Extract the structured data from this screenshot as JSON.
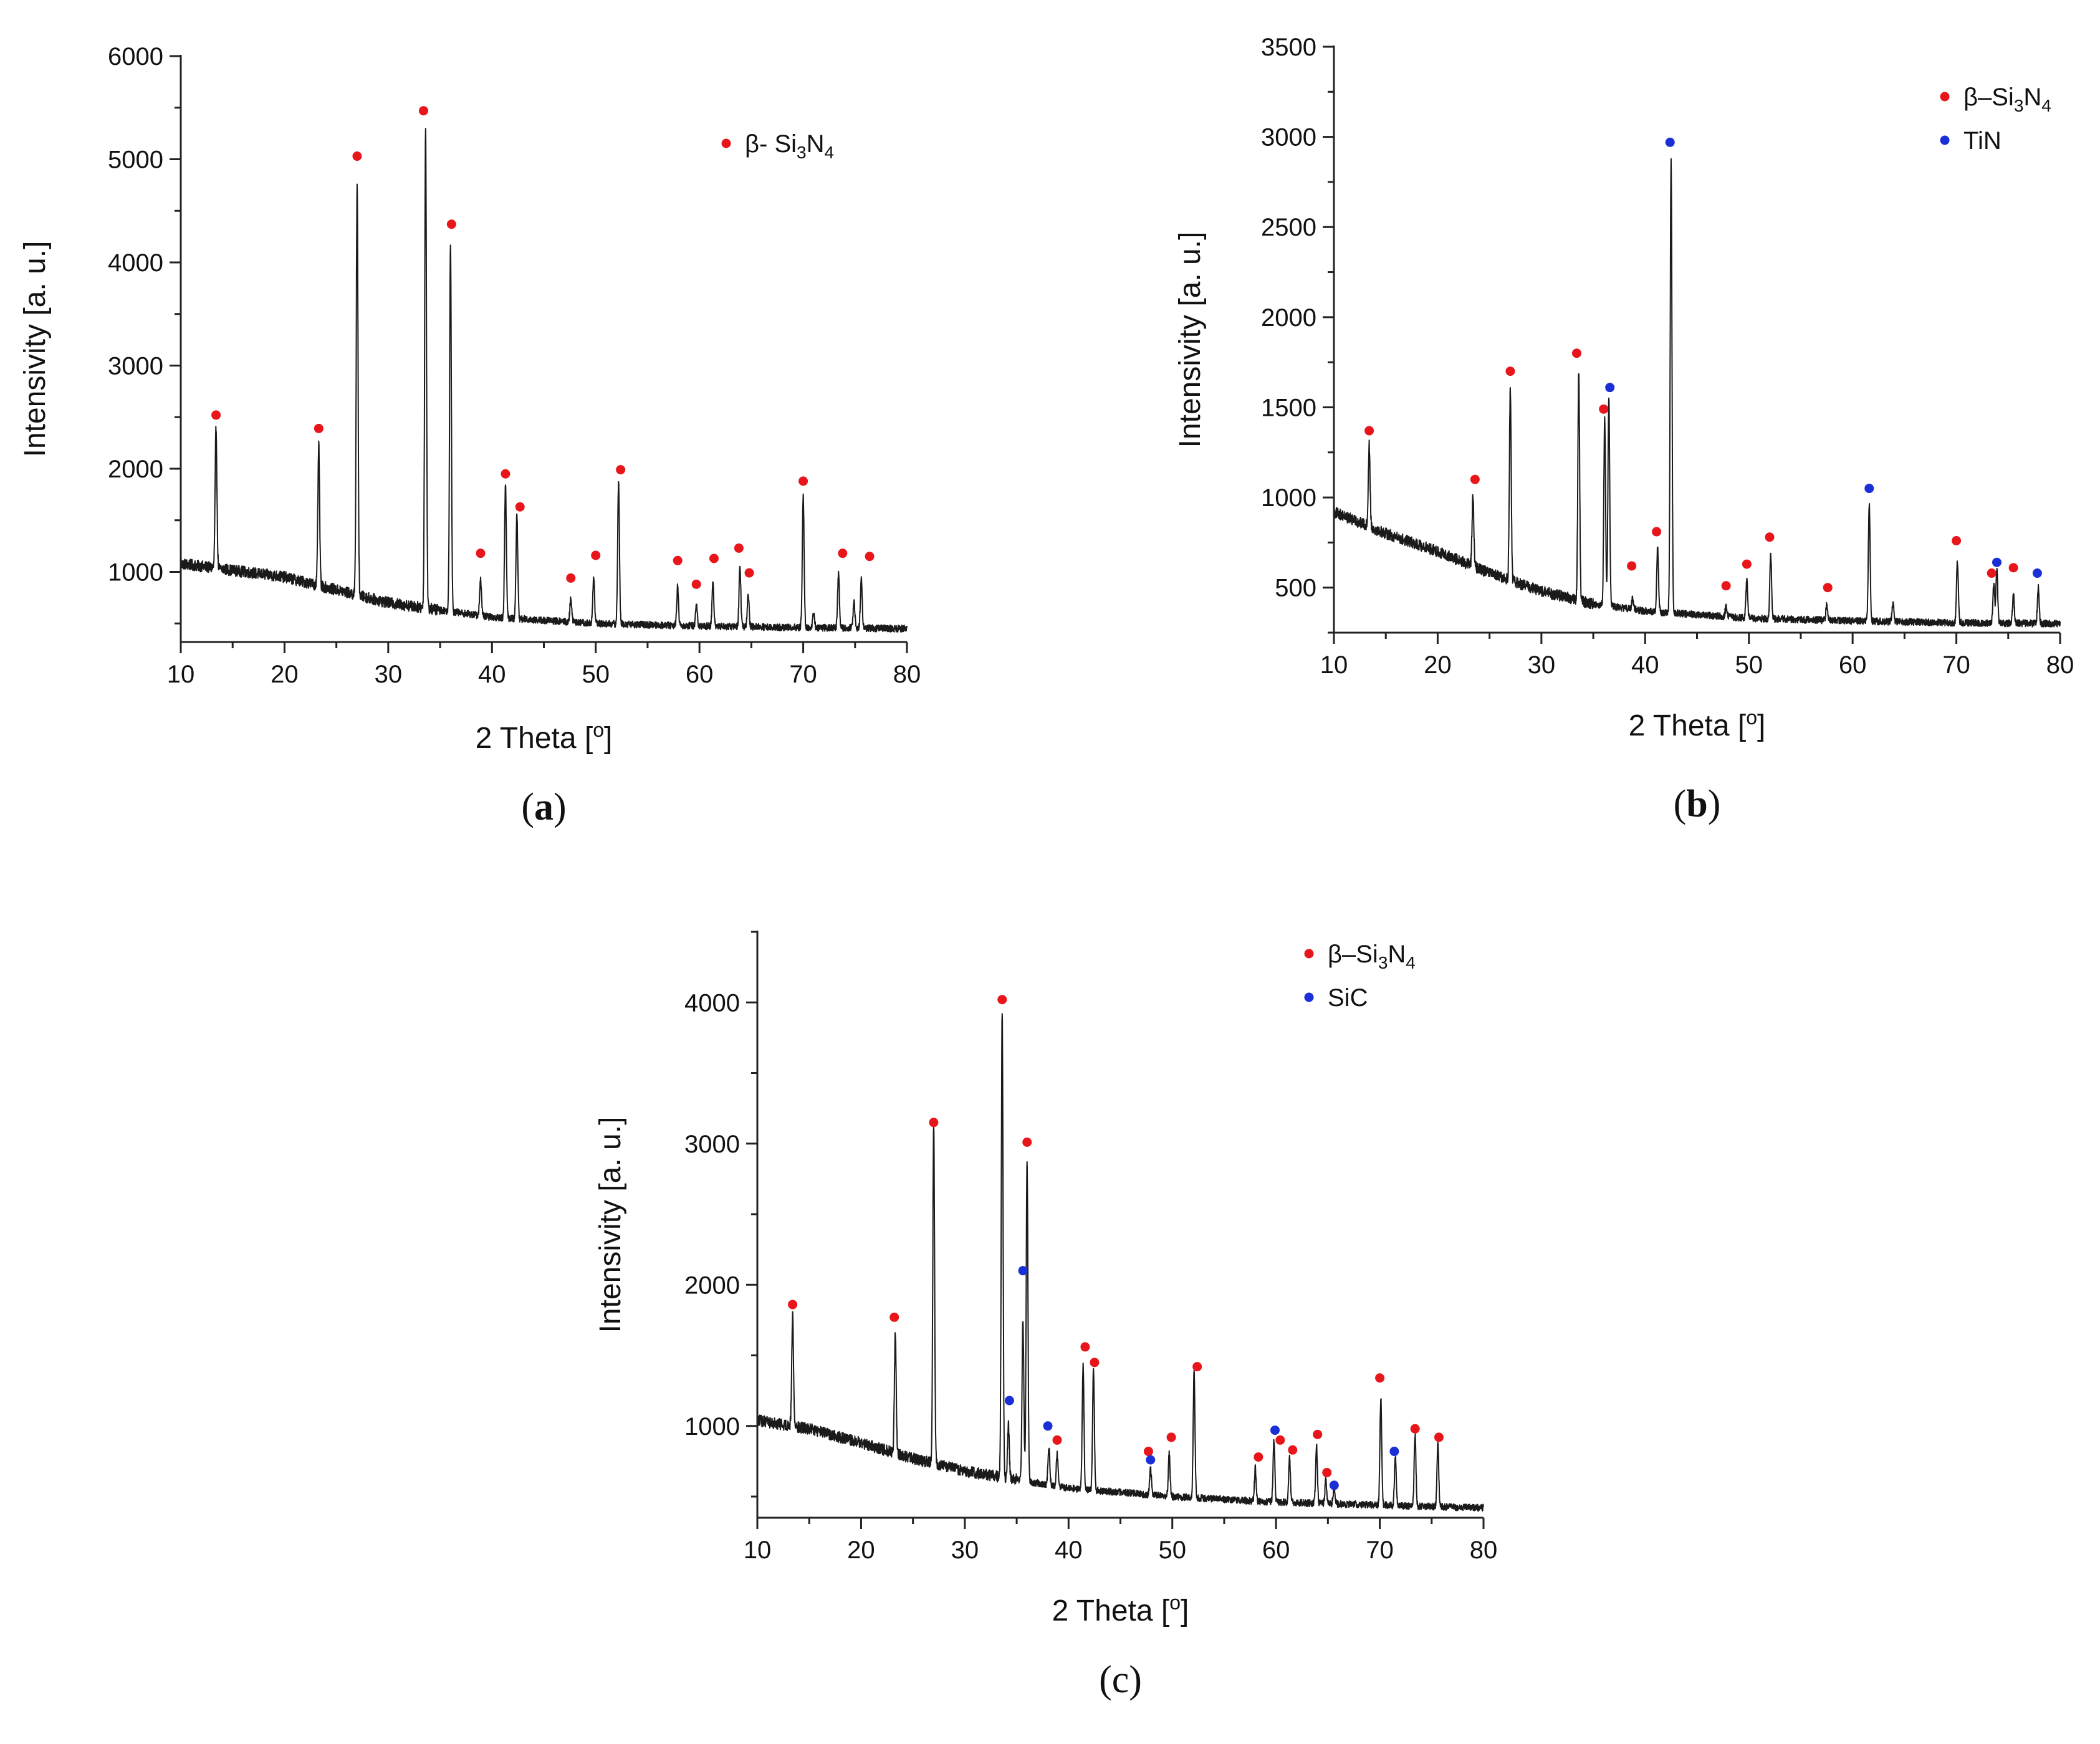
{
  "chart_data": [
    {
      "type": "line",
      "panel_label": "a",
      "label_style": "bold",
      "xlabel": "2 Theta [o]",
      "xlabel_main": "2 Theta [",
      "xlabel_sup": "o",
      "xlabel_end": "]",
      "ylabel": "Intensivity [a. u.]",
      "xlim": [
        10,
        80
      ],
      "ylim": [
        320,
        6000
      ],
      "xticks": [
        10,
        20,
        30,
        40,
        50,
        60,
        70,
        80
      ],
      "yticks": [
        1000,
        2000,
        3000,
        4000,
        5000,
        6000
      ],
      "legend": [
        {
          "label": "β- Si3N4",
          "prefix": "β- Si",
          "sub1": "3",
          "mid": "N",
          "sub2": "4",
          "color": "#e8161b"
        }
      ],
      "baseline": [
        [
          10,
          1080
        ],
        [
          20,
          950
        ],
        [
          30,
          700
        ],
        [
          40,
          560
        ],
        [
          50,
          500
        ],
        [
          60,
          475
        ],
        [
          70,
          460
        ],
        [
          80,
          450
        ]
      ],
      "peaks": [
        [
          13.4,
          2400
        ],
        [
          23.3,
          2220
        ],
        [
          27.0,
          4760
        ],
        [
          33.6,
          5300
        ],
        [
          36.0,
          4180
        ],
        [
          38.9,
          940
        ],
        [
          41.3,
          1850
        ],
        [
          42.4,
          1560
        ],
        [
          47.6,
          750
        ],
        [
          49.8,
          950
        ],
        [
          52.2,
          1860
        ],
        [
          57.9,
          860
        ],
        [
          59.7,
          700
        ],
        [
          61.3,
          900
        ],
        [
          63.9,
          1050
        ],
        [
          64.7,
          780
        ],
        [
          70.0,
          1730
        ],
        [
          71.0,
          600
        ],
        [
          73.4,
          980
        ],
        [
          74.9,
          700
        ],
        [
          75.6,
          940
        ]
      ],
      "markers": [
        {
          "x": 13.4,
          "y": 2520,
          "phase": "Si3N4"
        },
        {
          "x": 23.3,
          "y": 2390,
          "phase": "Si3N4"
        },
        {
          "x": 27.0,
          "y": 5030,
          "phase": "Si3N4"
        },
        {
          "x": 33.4,
          "y": 5470,
          "phase": "Si3N4"
        },
        {
          "x": 36.1,
          "y": 4370,
          "phase": "Si3N4"
        },
        {
          "x": 38.9,
          "y": 1180,
          "phase": "Si3N4"
        },
        {
          "x": 41.3,
          "y": 1950,
          "phase": "Si3N4"
        },
        {
          "x": 42.7,
          "y": 1630,
          "phase": "Si3N4"
        },
        {
          "x": 47.6,
          "y": 940,
          "phase": "Si3N4"
        },
        {
          "x": 50.0,
          "y": 1160,
          "phase": "Si3N4"
        },
        {
          "x": 52.4,
          "y": 1990,
          "phase": "Si3N4"
        },
        {
          "x": 57.9,
          "y": 1110,
          "phase": "Si3N4"
        },
        {
          "x": 59.7,
          "y": 880,
          "phase": "Si3N4"
        },
        {
          "x": 61.4,
          "y": 1130,
          "phase": "Si3N4"
        },
        {
          "x": 63.8,
          "y": 1230,
          "phase": "Si3N4"
        },
        {
          "x": 64.8,
          "y": 990,
          "phase": "Si3N4"
        },
        {
          "x": 70.0,
          "y": 1880,
          "phase": "Si3N4"
        },
        {
          "x": 73.8,
          "y": 1180,
          "phase": "Si3N4"
        },
        {
          "x": 76.4,
          "y": 1150,
          "phase": "Si3N4"
        }
      ]
    },
    {
      "type": "line",
      "panel_label": "b",
      "label_style": "bold",
      "xlabel": "2 Theta [o]",
      "xlabel_main": "2 Theta [",
      "xlabel_sup": "o",
      "xlabel_end": "]",
      "ylabel": "Intensivity [a. u.]",
      "xlim": [
        10,
        80
      ],
      "ylim": [
        250,
        3500
      ],
      "xticks": [
        10,
        20,
        30,
        40,
        50,
        60,
        70,
        80
      ],
      "yticks": [
        500,
        1000,
        1500,
        2000,
        2500,
        3000,
        3500
      ],
      "legend": [
        {
          "label": "β–Si3N4",
          "prefix": "β–Si",
          "sub1": "3",
          "mid": "N",
          "sub2": "4",
          "color": "#e8161b"
        },
        {
          "label": "TiN",
          "prefix": "TiN",
          "sub1": "",
          "mid": "",
          "sub2": "",
          "color": "#1a2fd6"
        }
      ],
      "baseline": [
        [
          10,
          920
        ],
        [
          15,
          800
        ],
        [
          20,
          700
        ],
        [
          25,
          580
        ],
        [
          30,
          480
        ],
        [
          35,
          410
        ],
        [
          40,
          370
        ],
        [
          50,
          330
        ],
        [
          60,
          315
        ],
        [
          70,
          305
        ],
        [
          80,
          300
        ]
      ],
      "peaks": [
        [
          13.4,
          1290
        ],
        [
          23.4,
          1000
        ],
        [
          27.0,
          1610
        ],
        [
          33.6,
          1690
        ],
        [
          36.1,
          1430
        ],
        [
          36.5,
          1560
        ],
        [
          38.8,
          440
        ],
        [
          41.2,
          720
        ],
        [
          42.5,
          2880
        ],
        [
          47.8,
          390
        ],
        [
          49.8,
          540
        ],
        [
          52.1,
          690
        ],
        [
          57.5,
          400
        ],
        [
          61.6,
          970
        ],
        [
          63.9,
          420
        ],
        [
          70.1,
          650
        ],
        [
          73.6,
          520
        ],
        [
          73.9,
          600
        ],
        [
          75.5,
          460
        ],
        [
          77.9,
          500
        ]
      ],
      "markers": [
        {
          "x": 13.4,
          "y": 1370,
          "phase": "Si3N4"
        },
        {
          "x": 23.6,
          "y": 1100,
          "phase": "Si3N4"
        },
        {
          "x": 27.0,
          "y": 1700,
          "phase": "Si3N4"
        },
        {
          "x": 33.4,
          "y": 1800,
          "phase": "Si3N4"
        },
        {
          "x": 36.0,
          "y": 1490,
          "phase": "Si3N4"
        },
        {
          "x": 36.6,
          "y": 1610,
          "phase": "TiN"
        },
        {
          "x": 38.7,
          "y": 620,
          "phase": "Si3N4"
        },
        {
          "x": 41.1,
          "y": 810,
          "phase": "Si3N4"
        },
        {
          "x": 42.4,
          "y": 2970,
          "phase": "TiN"
        },
        {
          "x": 47.8,
          "y": 510,
          "phase": "Si3N4"
        },
        {
          "x": 49.8,
          "y": 630,
          "phase": "Si3N4"
        },
        {
          "x": 52.0,
          "y": 780,
          "phase": "Si3N4"
        },
        {
          "x": 57.6,
          "y": 500,
          "phase": "Si3N4"
        },
        {
          "x": 61.6,
          "y": 1050,
          "phase": "TiN"
        },
        {
          "x": 70.0,
          "y": 760,
          "phase": "Si3N4"
        },
        {
          "x": 73.4,
          "y": 580,
          "phase": "Si3N4"
        },
        {
          "x": 73.9,
          "y": 640,
          "phase": "TiN"
        },
        {
          "x": 75.5,
          "y": 610,
          "phase": "Si3N4"
        },
        {
          "x": 77.8,
          "y": 580,
          "phase": "TiN"
        }
      ]
    },
    {
      "type": "line",
      "panel_label": "c",
      "label_style": "plain",
      "xlabel": "2 Theta [o]",
      "xlabel_main": "2 Theta [",
      "xlabel_sup": "o",
      "xlabel_end": "]",
      "ylabel": "Intensivity [a. u.]",
      "xlim": [
        10,
        80
      ],
      "ylim": [
        350,
        4500
      ],
      "xticks": [
        10,
        20,
        30,
        40,
        50,
        60,
        70,
        80
      ],
      "yticks": [
        1000,
        2000,
        3000,
        4000
      ],
      "legend": [
        {
          "label": "β–Si3N4",
          "prefix": "β–Si",
          "sub1": "3",
          "mid": "N",
          "sub2": "4",
          "color": "#e8161b"
        },
        {
          "label": "SiC",
          "prefix": "SiC",
          "sub1": "",
          "mid": "",
          "sub2": "",
          "color": "#1a2fd6"
        }
      ],
      "baseline": [
        [
          10,
          1040
        ],
        [
          15,
          980
        ],
        [
          20,
          880
        ],
        [
          25,
          770
        ],
        [
          30,
          680
        ],
        [
          35,
          620
        ],
        [
          40,
          560
        ],
        [
          50,
          500
        ],
        [
          60,
          460
        ],
        [
          70,
          440
        ],
        [
          80,
          420
        ]
      ],
      "peaks": [
        [
          13.4,
          1780
        ],
        [
          23.3,
          1680
        ],
        [
          27.0,
          3130
        ],
        [
          33.6,
          3930
        ],
        [
          34.2,
          1000
        ],
        [
          35.6,
          1740
        ],
        [
          36.0,
          2870
        ],
        [
          38.1,
          850
        ],
        [
          38.9,
          800
        ],
        [
          41.4,
          1430
        ],
        [
          42.4,
          1400
        ],
        [
          47.9,
          700
        ],
        [
          49.7,
          800
        ],
        [
          52.1,
          1380
        ],
        [
          58.0,
          700
        ],
        [
          59.8,
          900
        ],
        [
          61.3,
          780
        ],
        [
          63.9,
          860
        ],
        [
          64.8,
          620
        ],
        [
          65.6,
          560
        ],
        [
          70.1,
          1190
        ],
        [
          71.5,
          780
        ],
        [
          73.4,
          940
        ],
        [
          75.6,
          870
        ]
      ],
      "markers": [
        {
          "x": 13.4,
          "y": 1860,
          "phase": "Si3N4"
        },
        {
          "x": 23.2,
          "y": 1770,
          "phase": "Si3N4"
        },
        {
          "x": 27.0,
          "y": 3150,
          "phase": "Si3N4"
        },
        {
          "x": 33.6,
          "y": 4020,
          "phase": "Si3N4"
        },
        {
          "x": 34.3,
          "y": 1180,
          "phase": "SiC"
        },
        {
          "x": 35.6,
          "y": 2100,
          "phase": "SiC"
        },
        {
          "x": 36.0,
          "y": 3010,
          "phase": "Si3N4"
        },
        {
          "x": 38.0,
          "y": 1000,
          "phase": "SiC"
        },
        {
          "x": 38.9,
          "y": 900,
          "phase": "Si3N4"
        },
        {
          "x": 41.6,
          "y": 1560,
          "phase": "Si3N4"
        },
        {
          "x": 42.5,
          "y": 1450,
          "phase": "Si3N4"
        },
        {
          "x": 47.7,
          "y": 820,
          "phase": "Si3N4"
        },
        {
          "x": 47.9,
          "y": 760,
          "phase": "SiC"
        },
        {
          "x": 49.9,
          "y": 920,
          "phase": "Si3N4"
        },
        {
          "x": 52.4,
          "y": 1420,
          "phase": "Si3N4"
        },
        {
          "x": 58.3,
          "y": 780,
          "phase": "Si3N4"
        },
        {
          "x": 59.9,
          "y": 970,
          "phase": "SiC"
        },
        {
          "x": 60.4,
          "y": 900,
          "phase": "Si3N4"
        },
        {
          "x": 61.6,
          "y": 830,
          "phase": "Si3N4"
        },
        {
          "x": 64.0,
          "y": 940,
          "phase": "Si3N4"
        },
        {
          "x": 64.9,
          "y": 670,
          "phase": "Si3N4"
        },
        {
          "x": 65.6,
          "y": 580,
          "phase": "SiC"
        },
        {
          "x": 70.0,
          "y": 1340,
          "phase": "Si3N4"
        },
        {
          "x": 71.4,
          "y": 820,
          "phase": "SiC"
        },
        {
          "x": 73.4,
          "y": 980,
          "phase": "Si3N4"
        },
        {
          "x": 75.7,
          "y": 920,
          "phase": "Si3N4"
        }
      ]
    }
  ]
}
